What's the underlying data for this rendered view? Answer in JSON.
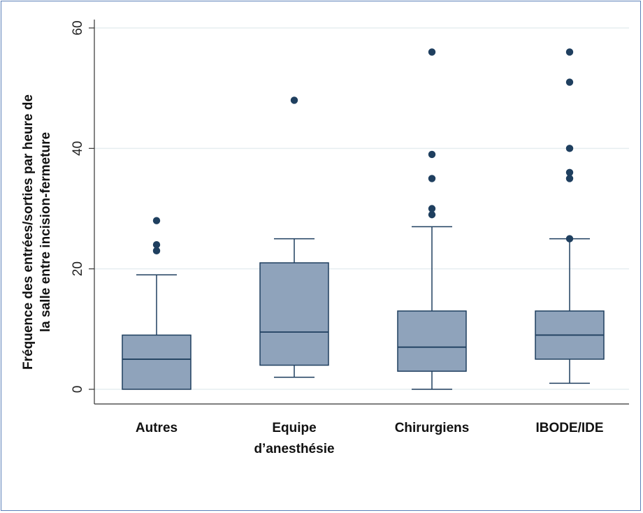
{
  "chart_data": {
    "type": "box",
    "title": "",
    "ylabel_lines": [
      "Fréquence des entrées/sorties par heure de",
      "la salle entre incision-fermeture"
    ],
    "ylim": [
      0,
      60
    ],
    "yticks": [
      0,
      20,
      40,
      60
    ],
    "grid": true,
    "categories": [
      {
        "label_lines": [
          "Autres"
        ]
      },
      {
        "label_lines": [
          "Equipe",
          "d’anesthésie"
        ]
      },
      {
        "label_lines": [
          "Chirurgiens"
        ]
      },
      {
        "label_lines": [
          "IBODE/IDE"
        ]
      }
    ],
    "boxes": [
      {
        "category": "Autres",
        "whisker_low": 0,
        "q1": 0,
        "median": 5,
        "q3": 9,
        "whisker_high": 19,
        "outliers": [
          23,
          24,
          28
        ]
      },
      {
        "category": "Equipe d’anesthésie",
        "whisker_low": 2,
        "q1": 4,
        "median": 9.5,
        "q3": 21,
        "whisker_high": 25,
        "outliers": [
          48
        ]
      },
      {
        "category": "Chirurgiens",
        "whisker_low": 0,
        "q1": 3,
        "median": 7,
        "q3": 13,
        "whisker_high": 27,
        "outliers": [
          29,
          30,
          35,
          39,
          56
        ]
      },
      {
        "category": "IBODE/IDE",
        "whisker_low": 1,
        "q1": 5,
        "median": 9,
        "q3": 13,
        "whisker_high": 25,
        "outliers": [
          25,
          35,
          36,
          40,
          51,
          56
        ]
      }
    ],
    "colors": {
      "box_fill": "#8fa3bb",
      "box_stroke": "#1f3f5f",
      "outlier": "#1f3f5f",
      "grid": "#e6eef0",
      "axis": "#333333"
    }
  }
}
